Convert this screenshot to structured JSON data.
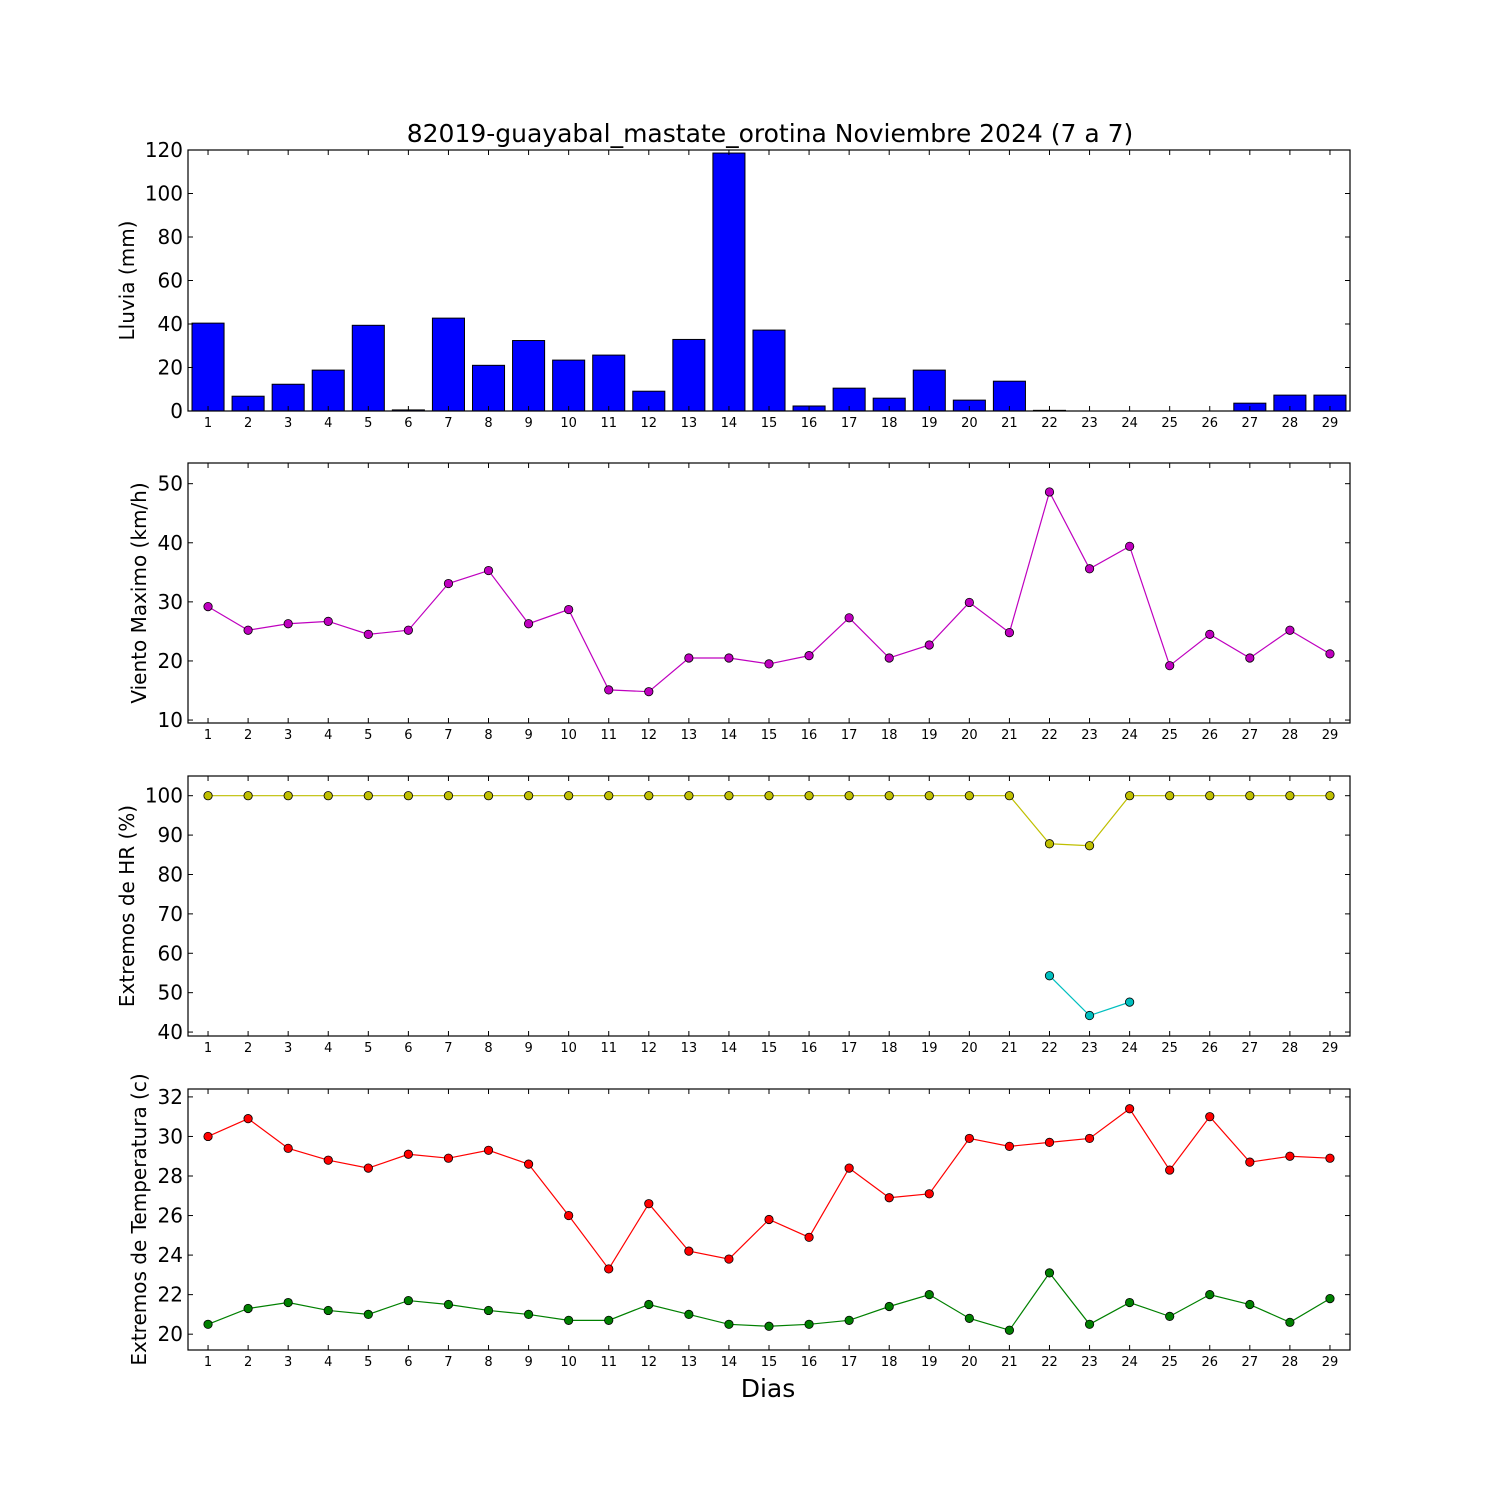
{
  "title": "82019-guayabal_mastate_orotina Noviembre 2024  (7 a 7)",
  "xlabel": "Dias",
  "chart_data": [
    {
      "type": "bar",
      "ylabel": "Lluvia (mm)",
      "ylim": [
        0,
        120
      ],
      "yticks": [
        0,
        20,
        40,
        60,
        80,
        100,
        120
      ],
      "x": [
        1,
        2,
        3,
        4,
        5,
        6,
        7,
        8,
        9,
        10,
        11,
        12,
        13,
        14,
        15,
        16,
        17,
        18,
        19,
        20,
        21,
        22,
        23,
        24,
        25,
        26,
        27,
        28,
        29
      ],
      "series": [
        {
          "values": [
            40.4,
            6.8,
            12.3,
            18.8,
            39.4,
            0.5,
            42.7,
            21.0,
            32.4,
            23.4,
            25.7,
            9.1,
            32.9,
            118.6,
            37.2,
            2.3,
            10.5,
            5.9,
            18.8,
            5.0,
            13.7,
            0.3,
            0,
            0,
            0,
            0,
            3.6,
            7.3,
            7.3
          ],
          "color": "#0000ff"
        }
      ]
    },
    {
      "type": "line",
      "ylabel": "Viento Maximo (km/h)",
      "ylim": [
        9.5,
        53.5
      ],
      "yticks": [
        10,
        20,
        30,
        40,
        50
      ],
      "x": [
        1,
        2,
        3,
        4,
        5,
        6,
        7,
        8,
        9,
        10,
        11,
        12,
        13,
        14,
        15,
        16,
        17,
        18,
        19,
        20,
        21,
        22,
        23,
        24,
        25,
        26,
        27,
        28,
        29
      ],
      "series": [
        {
          "values": [
            29.2,
            25.2,
            26.3,
            26.7,
            24.5,
            25.2,
            33.1,
            35.3,
            26.3,
            28.7,
            15.1,
            14.8,
            20.5,
            20.5,
            19.5,
            20.9,
            27.3,
            20.5,
            22.7,
            29.9,
            24.8,
            48.6,
            35.6,
            39.4,
            19.2,
            24.5,
            20.5,
            25.2,
            21.2
          ],
          "color": "#bf00bf"
        }
      ]
    },
    {
      "type": "line",
      "ylabel": "Extremos de HR (%)",
      "ylim": [
        39,
        105
      ],
      "yticks": [
        40,
        50,
        60,
        70,
        80,
        90,
        100
      ],
      "x": [
        1,
        2,
        3,
        4,
        5,
        6,
        7,
        8,
        9,
        10,
        11,
        12,
        13,
        14,
        15,
        16,
        17,
        18,
        19,
        20,
        21,
        22,
        23,
        24,
        25,
        26,
        27,
        28,
        29
      ],
      "series": [
        {
          "values": [
            100,
            100,
            100,
            100,
            100,
            100,
            100,
            100,
            100,
            100,
            100,
            100,
            100,
            100,
            100,
            100,
            100,
            100,
            100,
            100,
            100,
            87.8,
            87.3,
            100,
            100,
            100,
            100,
            100,
            100
          ],
          "color": "#bfbf00"
        },
        {
          "values": [
            null,
            null,
            null,
            null,
            null,
            null,
            null,
            null,
            null,
            null,
            null,
            null,
            null,
            null,
            null,
            null,
            null,
            null,
            null,
            null,
            null,
            54.3,
            44.2,
            47.6,
            null,
            null,
            null,
            null,
            null
          ],
          "color": "#00bfbf"
        }
      ]
    },
    {
      "type": "line",
      "ylabel": "Extremos de Temperatura (c)",
      "ylim": [
        19.2,
        32.4
      ],
      "yticks": [
        20,
        22,
        24,
        26,
        28,
        30,
        32
      ],
      "x": [
        1,
        2,
        3,
        4,
        5,
        6,
        7,
        8,
        9,
        10,
        11,
        12,
        13,
        14,
        15,
        16,
        17,
        18,
        19,
        20,
        21,
        22,
        23,
        24,
        25,
        26,
        27,
        28,
        29
      ],
      "series": [
        {
          "values": [
            30.0,
            30.9,
            29.4,
            28.8,
            28.4,
            29.1,
            28.9,
            29.3,
            28.6,
            26.0,
            23.3,
            26.6,
            24.2,
            23.8,
            25.8,
            24.9,
            28.4,
            26.9,
            27.1,
            29.9,
            29.5,
            29.7,
            29.9,
            31.4,
            28.3,
            31.0,
            28.7,
            29.0,
            28.9
          ],
          "color": "#ff0000"
        },
        {
          "values": [
            20.5,
            21.3,
            21.6,
            21.2,
            21.0,
            21.7,
            21.5,
            21.2,
            21.0,
            20.7,
            20.7,
            21.5,
            21.0,
            20.5,
            20.4,
            20.5,
            20.7,
            21.4,
            22.0,
            20.8,
            20.2,
            23.1,
            20.5,
            21.6,
            20.9,
            22.0,
            21.5,
            20.6,
            21.8
          ],
          "color": "#008000"
        }
      ]
    }
  ]
}
